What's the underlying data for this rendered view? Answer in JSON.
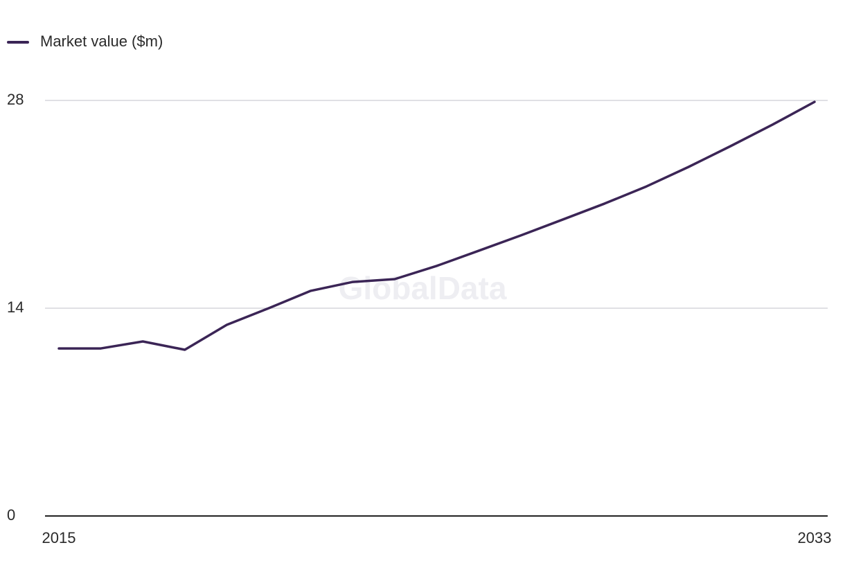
{
  "chart_data": {
    "type": "line",
    "watermark": "GlobalData",
    "x": [
      2015,
      2016,
      2017,
      2018,
      2019,
      2020,
      2021,
      2022,
      2023,
      2024,
      2025,
      2026,
      2027,
      2028,
      2029,
      2030,
      2031,
      2032,
      2033
    ],
    "series": [
      {
        "name": "Market value ($m)",
        "color": "#3b2556",
        "values": [
          11.29,
          11.29,
          11.76,
          11.2,
          12.88,
          14.0,
          15.17,
          15.77,
          15.96,
          16.85,
          17.87,
          18.9,
          19.97,
          21.05,
          22.21,
          23.52,
          24.92,
          26.37,
          27.9
        ]
      }
    ],
    "xlim": [
      2015,
      2033
    ],
    "xticks": [
      2015,
      2033
    ],
    "ylim": [
      0,
      28
    ],
    "yticks": [
      0,
      14,
      28
    ],
    "grid": true,
    "legend": "top-left"
  }
}
